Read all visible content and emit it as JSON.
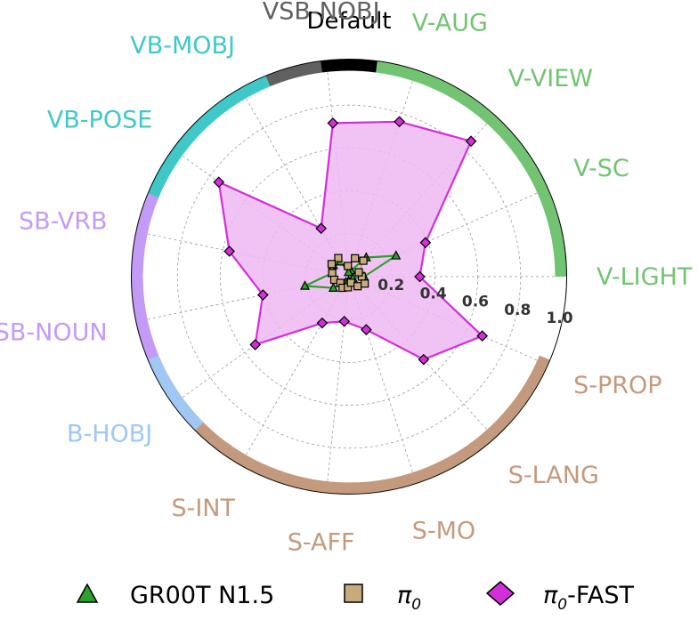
{
  "chart_data": {
    "type": "radar",
    "title": "Default",
    "categories": [
      "V-LIGHT",
      "V-SC",
      "V-VIEW",
      "V-AUG",
      "VSB-NOBJ",
      "VB-MOBJ",
      "VB-POSE",
      "SB-VRB",
      "SB-NOUN",
      "B-HOBJ",
      "S-INT",
      "S-AFF",
      "S-MO",
      "S-LANG",
      "S-PROP"
    ],
    "category_colors": [
      "#72c472",
      "#72c472",
      "#72c472",
      "#72c472",
      "#606060",
      "#40c8c8",
      "#40c8c8",
      "#c39bf7",
      "#c39bf7",
      "#a0c8f4",
      "#c49a7e",
      "#c49a7e",
      "#c49a7e",
      "#c49a7e",
      "#c49a7e"
    ],
    "group_ring": [
      {
        "color": "#c49a7e",
        "from": 157.5,
        "to": 337.5
      },
      {
        "color": "#a0c8f4",
        "from": 202.5,
        "to": 225
      },
      {
        "color": "#c39bf7",
        "from": 157.5,
        "to": 202.5
      },
      {
        "color": "#40c8c8",
        "from": 112.5,
        "to": 157.5
      },
      {
        "color": "#606060",
        "from": 97.5,
        "to": 112.5
      },
      {
        "color": "#000000",
        "from": 82.5,
        "to": 97.5
      },
      {
        "color": "#72c472",
        "from": 0,
        "to": 82.5
      }
    ],
    "radial_ticks": [
      "0.2",
      "0.4",
      "0.6",
      "0.8",
      "1.0"
    ],
    "radial_tick_values": [
      0.2,
      0.4,
      0.6,
      0.8,
      1.0
    ],
    "rlim": [
      0,
      1.0
    ],
    "grid": true,
    "legend_position": "bottom",
    "series": [
      {
        "name": "GR00T N1.5",
        "marker": "triangle",
        "color": "#2ca02c",
        "fill": false,
        "values": [
          0.07,
          0.24,
          0.12,
          0.03,
          0.02,
          0.08,
          0.09,
          0.08,
          0.21,
          0.09,
          0.03,
          0.02,
          0.03,
          0.02,
          0.02
        ]
      },
      {
        "name": "π0",
        "name_main": "π",
        "name_sub": "0",
        "marker": "square",
        "color": "#c8ab7c",
        "fill": false,
        "values": [
          0.06,
          0.05,
          0.1,
          0.09,
          0.05,
          0.1,
          0.1,
          0.08,
          0.07,
          0.05,
          0.06,
          0.05,
          0.03,
          0.06,
          0.08
        ]
      },
      {
        "name": "π0-FAST",
        "name_main": "π",
        "name_sub": "0",
        "name_suffix": "-FAST",
        "marker": "diamond",
        "color": "#d22fd8",
        "fill": true,
        "fill_color": "#efb8f2",
        "values": [
          0.33,
          0.39,
          0.85,
          0.76,
          0.72,
          0.26,
          0.75,
          0.57,
          0.41,
          0.54,
          0.25,
          0.21,
          0.26,
          0.52,
          0.68
        ]
      }
    ]
  }
}
